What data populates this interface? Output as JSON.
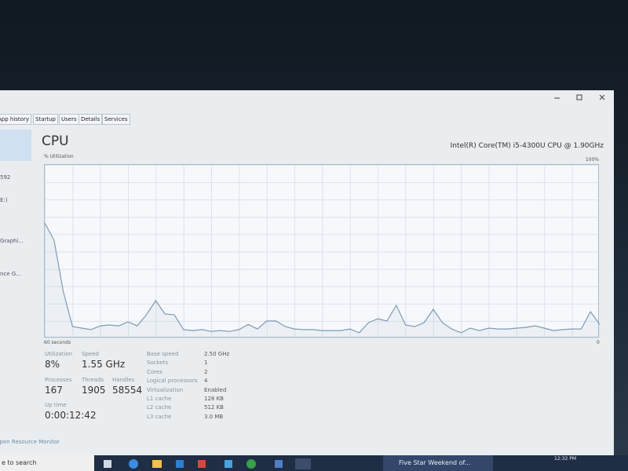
{
  "tabs": [
    "App history",
    "Startup",
    "Users",
    "Details",
    "Services"
  ],
  "sidebar": [
    "592",
    "E:)",
    "Graphi...",
    "nce G..."
  ],
  "chart_data": {
    "type": "line",
    "title": "CPU",
    "subtitle": "Intel(R) Core(TM) i5-4300U CPU @ 1.90GHz",
    "y_label": "% Utilization",
    "x": [
      60,
      59,
      58,
      57,
      56,
      55,
      54,
      53,
      52,
      51,
      50,
      49,
      48,
      47,
      46,
      45,
      44,
      43,
      42,
      41,
      40,
      39,
      38,
      37,
      36,
      35,
      34,
      33,
      32,
      31,
      30,
      29,
      28,
      27,
      26,
      25,
      24,
      23,
      22,
      21,
      20,
      19,
      18,
      17,
      16,
      15,
      14,
      13,
      12,
      11,
      10,
      9,
      8,
      7,
      6,
      5,
      4,
      3,
      2,
      1,
      0
    ],
    "values": [
      66.5,
      56.6,
      27,
      6.8,
      5.9,
      5,
      7.2,
      7.7,
      7.2,
      9.5,
      7.2,
      13.6,
      21.7,
      14,
      13.6,
      5,
      4.5,
      5,
      4,
      4.5,
      4,
      5,
      8,
      5.4,
      10,
      10,
      6.8,
      5.4,
      5,
      5,
      4.5,
      4.5,
      4.5,
      5.4,
      3.2,
      9,
      11.3,
      10,
      19,
      7.7,
      6.8,
      9,
      16.7,
      9,
      5.4,
      3.2,
      5.9,
      4.5,
      5.9,
      5.4,
      5.4,
      5.9,
      6.3,
      7.2,
      5.9,
      4.5,
      5,
      5.4,
      5.4,
      15.4,
      8
    ],
    "color": "#7f9ab5",
    "xlim": [
      60,
      0
    ],
    "xticks": [
      {
        "value": 60,
        "label": "60 seconds"
      },
      0
    ],
    "ylim": [
      0,
      100
    ],
    "yticks": [
      {
        "value": 100,
        "label": "100%"
      }
    ],
    "grid": true
  },
  "stats": [
    {
      "label": "Utilization",
      "value": "8%"
    },
    {
      "label": "Speed",
      "value": "1.55 GHz"
    },
    {
      "label": "Processes",
      "value": "167"
    },
    {
      "label": "Threads",
      "value": "1905"
    },
    {
      "label": "Handles",
      "value": "58554"
    },
    {
      "label": "Up time",
      "value": "0:00:12:42"
    }
  ],
  "specs": [
    {
      "label": "Base speed",
      "value": "2.50 GHz"
    },
    {
      "label": "Sockets",
      "value": "1"
    },
    {
      "label": "Cores",
      "value": "2"
    },
    {
      "label": "Logical processors",
      "value": "4"
    },
    {
      "label": "Virtualization",
      "value": "Enabled"
    },
    {
      "label": "L1 cache",
      "value": "128 KB"
    },
    {
      "label": "L2 cache",
      "value": "512 KB"
    },
    {
      "label": "L3 cache",
      "value": "3.0 MB"
    }
  ],
  "footer_link": "Open Resource Monitor",
  "taskbar": {
    "search": "e to search",
    "app": "Five Star Weekend of...",
    "time": "12:32 PM"
  }
}
